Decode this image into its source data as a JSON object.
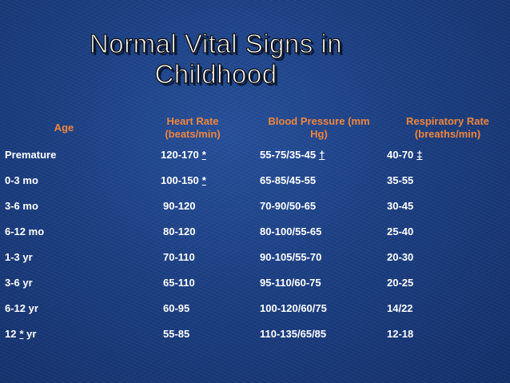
{
  "slide": {
    "title_line1": "Normal Vital Signs in",
    "title_line2": "Childhood"
  },
  "table": {
    "headers": {
      "age": "Age",
      "heart_rate_line1": "Heart Rate",
      "heart_rate_line2": "(beats/min)",
      "blood_pressure_line1": "Blood Pressure (mm",
      "blood_pressure_line2": "Hg)",
      "respiratory_rate_line1": "Respiratory Rate",
      "respiratory_rate_line2": "(breaths/min)"
    },
    "rows": [
      {
        "age": "Premature",
        "age_mark": "",
        "age_suffix": "",
        "hr": "120-170",
        "hr_mark": "*",
        "bp": "55-75/35-45",
        "bp_mark": "†",
        "rr": "40-70",
        "rr_mark": "‡"
      },
      {
        "age": "0-3 mo",
        "age_mark": "",
        "age_suffix": "",
        "hr": "100-150",
        "hr_mark": "*",
        "bp": "65-85/45-55",
        "bp_mark": "",
        "rr": "35-55",
        "rr_mark": ""
      },
      {
        "age": "3-6 mo",
        "age_mark": "",
        "age_suffix": "",
        "hr": "90-120",
        "hr_mark": "",
        "bp": "70-90/50-65",
        "bp_mark": "",
        "rr": "30-45",
        "rr_mark": ""
      },
      {
        "age": "6-12 mo",
        "age_mark": "",
        "age_suffix": "",
        "hr": "80-120",
        "hr_mark": "",
        "bp": "80-100/55-65",
        "bp_mark": "",
        "rr": "25-40",
        "rr_mark": ""
      },
      {
        "age": "1-3 yr",
        "age_mark": "",
        "age_suffix": "",
        "hr": "70-110",
        "hr_mark": "",
        "bp": "90-105/55-70",
        "bp_mark": "",
        "rr": "20-30",
        "rr_mark": ""
      },
      {
        "age": "3-6 yr",
        "age_mark": "",
        "age_suffix": "",
        "hr": "65-110",
        "hr_mark": "",
        "bp": "95-110/60-75",
        "bp_mark": "",
        "rr": "20-25",
        "rr_mark": ""
      },
      {
        "age": "6-12 yr",
        "age_mark": "",
        "age_suffix": "",
        "hr": "60-95",
        "hr_mark": "",
        "bp": "100-120/60/75",
        "bp_mark": "",
        "rr": "14/22",
        "rr_mark": ""
      },
      {
        "age": "12",
        "age_mark": "*",
        "age_suffix": "yr",
        "hr": "55-85",
        "hr_mark": "",
        "bp": "110-135/65/85",
        "bp_mark": "",
        "rr": "12-18",
        "rr_mark": ""
      }
    ]
  },
  "colors": {
    "background": "#1c3d7e",
    "header_text": "#f0863c",
    "body_text": "#ffffff"
  }
}
